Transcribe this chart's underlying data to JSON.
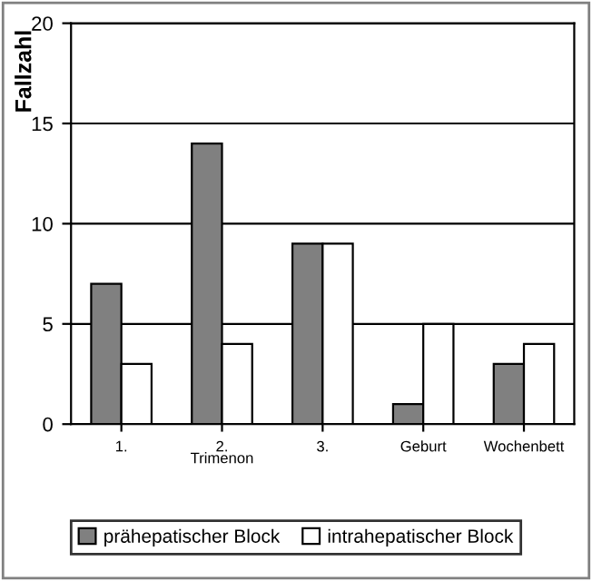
{
  "chart_data": {
    "type": "bar",
    "ylabel": "Fallzahl",
    "xlabel": "Trimenon",
    "categories": [
      "1.",
      "2.",
      "3.",
      "Geburt",
      "Wochenbett"
    ],
    "series": [
      {
        "name": "prähepatischer Block",
        "color": "#808080",
        "values": [
          7,
          14,
          9,
          1,
          3
        ]
      },
      {
        "name": "intrahepatischer Block",
        "color": "#ffffff",
        "values": [
          3,
          4,
          9,
          5,
          4
        ]
      }
    ],
    "ylim": [
      0,
      20
    ],
    "yticks": [
      0,
      5,
      10,
      15,
      20
    ],
    "grid": "y",
    "legend": "bottom"
  }
}
